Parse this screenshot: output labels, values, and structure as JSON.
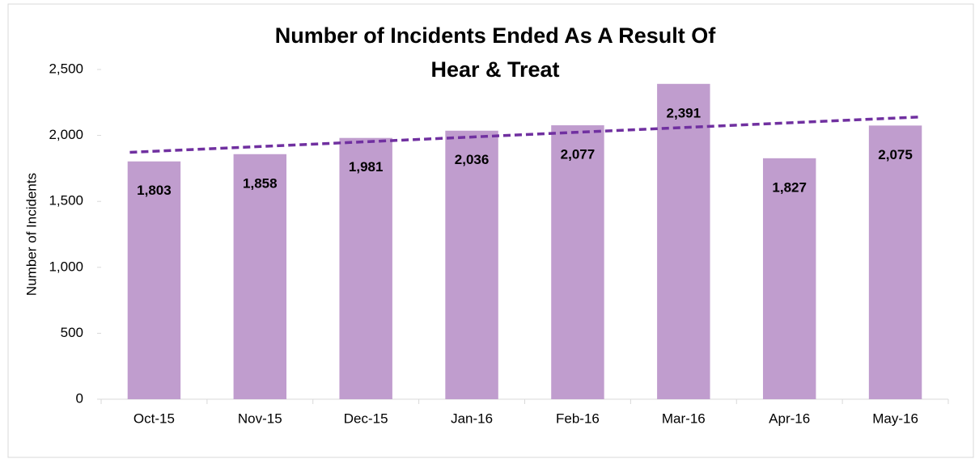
{
  "chart_data": {
    "type": "bar",
    "title": [
      "Number of Incidents Ended As A Result Of",
      "Hear & Treat"
    ],
    "y_label": "Number of Incidents",
    "categories": [
      "Oct-15",
      "Nov-15",
      "Dec-15",
      "Jan-16",
      "Feb-16",
      "Mar-16",
      "Apr-16",
      "May-16"
    ],
    "values": [
      1803,
      1858,
      1981,
      2036,
      2077,
      2391,
      1827,
      2075
    ],
    "value_labels": [
      "1,803",
      "1,858",
      "1,981",
      "2,036",
      "2,077",
      "2,391",
      "1,827",
      "2,075"
    ],
    "color": "#c09dce",
    "ylim": [
      0,
      2500
    ],
    "yticks": [
      0,
      500,
      {
        "value": 1000,
        "label": "1,000"
      },
      {
        "value": 1500,
        "label": "1,500"
      },
      {
        "value": 2000,
        "label": "2,000"
      },
      {
        "value": 2500,
        "label": "2,500"
      }
    ],
    "grid": false,
    "trendline": {
      "type": "linear",
      "color": "#7030a0",
      "dashed": true
    }
  }
}
